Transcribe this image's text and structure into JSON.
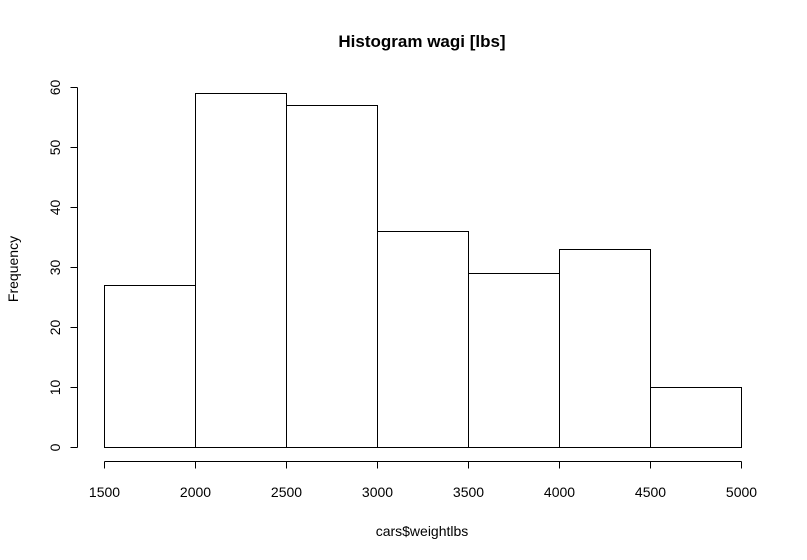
{
  "chart_data": {
    "type": "bar",
    "title": "Histogram wagi [lbs]",
    "xlabel": "cars$weightlbs",
    "ylabel": "Frequency",
    "bins": [
      {
        "start": 1500,
        "end": 2000,
        "count": 27
      },
      {
        "start": 2000,
        "end": 2500,
        "count": 59
      },
      {
        "start": 2500,
        "end": 3000,
        "count": 57
      },
      {
        "start": 3000,
        "end": 3500,
        "count": 36
      },
      {
        "start": 3500,
        "end": 4000,
        "count": 29
      },
      {
        "start": 4000,
        "end": 4500,
        "count": 33
      },
      {
        "start": 4500,
        "end": 5000,
        "count": 10
      }
    ],
    "xlim": [
      1500,
      5000
    ],
    "ylim": [
      0,
      60
    ],
    "x_ticks": [
      "1500",
      "2000",
      "2500",
      "3000",
      "3500",
      "4000",
      "4500",
      "5000"
    ],
    "y_ticks": [
      "0",
      "10",
      "20",
      "30",
      "40",
      "50",
      "60"
    ],
    "grid": false,
    "legend": "none"
  }
}
